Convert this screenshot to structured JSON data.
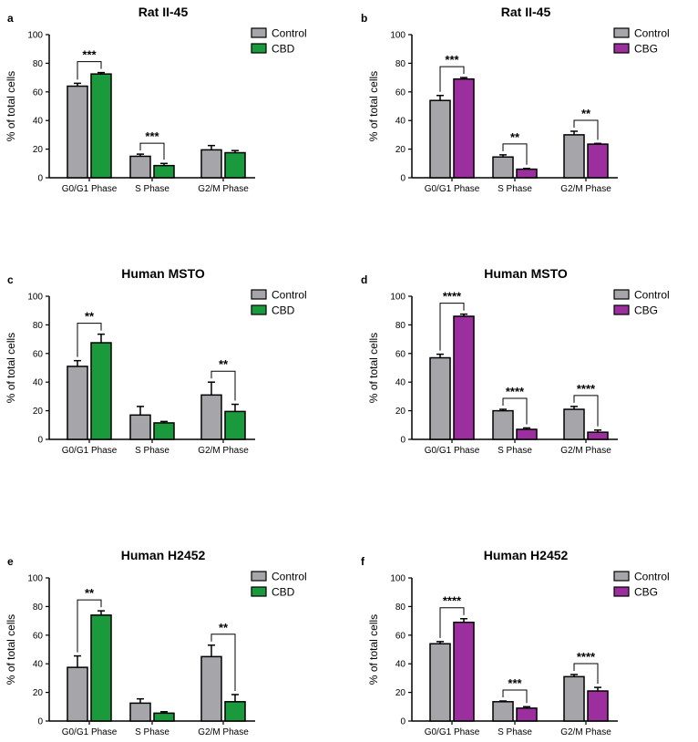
{
  "colors": {
    "control": "#a6a6aa",
    "cbd": "#1a9a3c",
    "cbg": "#9b2f9e",
    "outline": "#000000"
  },
  "chart_data": [
    {
      "type": "bar",
      "panel": "a",
      "title": "Rat II-45",
      "ylabel": "% of total cells",
      "categories": [
        "G0/G1 Phase",
        "S Phase",
        "G2/M Phase"
      ],
      "ylim": [
        0,
        100
      ],
      "yticks": [
        0,
        20,
        40,
        60,
        80,
        100
      ],
      "series": [
        {
          "name": "Control",
          "color": "control",
          "values": [
            64,
            15,
            19.5
          ],
          "errors": [
            2,
            1.5,
            3
          ]
        },
        {
          "name": "CBD",
          "color": "cbd",
          "values": [
            72.5,
            8.5,
            17.5
          ],
          "errors": [
            1,
            1.5,
            1.5
          ]
        }
      ],
      "significance": [
        {
          "category": 0,
          "label": "***"
        },
        {
          "category": 1,
          "label": "***"
        }
      ]
    },
    {
      "type": "bar",
      "panel": "b",
      "title": "Rat II-45",
      "ylabel": "% of total cells",
      "categories": [
        "G0/G1 Phase",
        "S Phase",
        "G2/M Phase"
      ],
      "ylim": [
        0,
        100
      ],
      "yticks": [
        0,
        20,
        40,
        60,
        80,
        100
      ],
      "series": [
        {
          "name": "Control",
          "color": "control",
          "values": [
            54,
            14.5,
            30
          ],
          "errors": [
            3.5,
            1.5,
            2.5
          ]
        },
        {
          "name": "CBG",
          "color": "cbg",
          "values": [
            69,
            6,
            23.5
          ],
          "errors": [
            1,
            0.5,
            0.5
          ]
        }
      ],
      "significance": [
        {
          "category": 0,
          "label": "***"
        },
        {
          "category": 1,
          "label": "**"
        },
        {
          "category": 2,
          "label": "**"
        }
      ]
    },
    {
      "type": "bar",
      "panel": "c",
      "title": "Human MSTO",
      "ylabel": "% of total cells",
      "categories": [
        "G0/G1 Phase",
        "S Phase",
        "G2/M Phase"
      ],
      "ylim": [
        0,
        100
      ],
      "yticks": [
        0,
        20,
        40,
        60,
        80,
        100
      ],
      "series": [
        {
          "name": "Control",
          "color": "control",
          "values": [
            51,
            17,
            31
          ],
          "errors": [
            4,
            6,
            9
          ]
        },
        {
          "name": "CBD",
          "color": "cbd",
          "values": [
            67.5,
            11.5,
            19.5
          ],
          "errors": [
            6,
            1,
            5
          ]
        }
      ],
      "significance": [
        {
          "category": 0,
          "label": "**"
        },
        {
          "category": 2,
          "label": "**"
        }
      ]
    },
    {
      "type": "bar",
      "panel": "d",
      "title": "Human MSTO",
      "ylabel": "% of total cells",
      "categories": [
        "G0/G1 Phase",
        "S Phase",
        "G2/M Phase"
      ],
      "ylim": [
        0,
        100
      ],
      "yticks": [
        0,
        20,
        40,
        60,
        80,
        100
      ],
      "series": [
        {
          "name": "Control",
          "color": "control",
          "values": [
            57,
            20,
            21
          ],
          "errors": [
            2.5,
            1,
            2
          ]
        },
        {
          "name": "CBG",
          "color": "cbg",
          "values": [
            86,
            7,
            5
          ],
          "errors": [
            1.5,
            1,
            1.5
          ]
        }
      ],
      "significance": [
        {
          "category": 0,
          "label": "****"
        },
        {
          "category": 1,
          "label": "****"
        },
        {
          "category": 2,
          "label": "****"
        }
      ]
    },
    {
      "type": "bar",
      "panel": "e",
      "title": "Human H2452",
      "ylabel": "% of total cells",
      "categories": [
        "G0/G1 Phase",
        "S Phase",
        "G2/M Phase"
      ],
      "ylim": [
        0,
        100
      ],
      "yticks": [
        0,
        20,
        40,
        60,
        80,
        100
      ],
      "series": [
        {
          "name": "Control",
          "color": "control",
          "values": [
            37.5,
            12.5,
            45
          ],
          "errors": [
            8,
            3,
            8
          ]
        },
        {
          "name": "CBD",
          "color": "cbd",
          "values": [
            74,
            5.5,
            13.5
          ],
          "errors": [
            3,
            1,
            5
          ]
        }
      ],
      "significance": [
        {
          "category": 0,
          "label": "**"
        },
        {
          "category": 2,
          "label": "**"
        }
      ]
    },
    {
      "type": "bar",
      "panel": "f",
      "title": "Human H2452",
      "ylabel": "% of total cells",
      "categories": [
        "G0/G1 Phase",
        "S Phase",
        "G2/M Phase"
      ],
      "ylim": [
        0,
        100
      ],
      "yticks": [
        0,
        20,
        40,
        60,
        80,
        100
      ],
      "series": [
        {
          "name": "Control",
          "color": "control",
          "values": [
            54,
            13.5,
            31
          ],
          "errors": [
            1.5,
            0.5,
            1.5
          ]
        },
        {
          "name": "CBG",
          "color": "cbg",
          "values": [
            69,
            9,
            21
          ],
          "errors": [
            2.5,
            1,
            2.5
          ]
        }
      ],
      "significance": [
        {
          "category": 0,
          "label": "****"
        },
        {
          "category": 1,
          "label": "***"
        },
        {
          "category": 2,
          "label": "****"
        }
      ]
    }
  ]
}
